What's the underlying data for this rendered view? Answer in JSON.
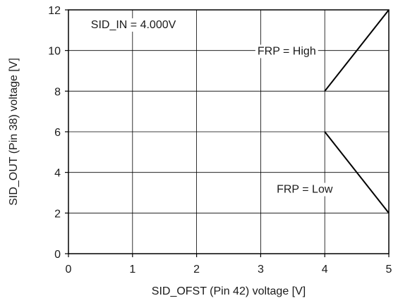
{
  "chart_data": {
    "type": "line",
    "xlabel": "SID_OFST (Pin 42) voltage [V]",
    "ylabel": "SID_OUT (Pin 38) voltage [V]",
    "xlim": [
      0,
      5
    ],
    "ylim": [
      0,
      12
    ],
    "x_ticks": [
      0,
      1,
      2,
      3,
      4,
      5
    ],
    "y_ticks": [
      0,
      2,
      4,
      6,
      8,
      10,
      12
    ],
    "grid": true,
    "series": [
      {
        "x": [
          4,
          5
        ],
        "y": [
          8,
          12
        ],
        "color": "#000000"
      },
      {
        "x": [
          4,
          5
        ],
        "y": [
          6,
          2
        ],
        "color": "#000000"
      }
    ],
    "annotations": [
      {
        "text": "SID_IN = 4.000V",
        "x": 0.35,
        "y": 11.1
      },
      {
        "text": "FRP = High",
        "x": 2.95,
        "y": 9.8
      },
      {
        "text": "FRP = Low",
        "x": 3.25,
        "y": 3.0
      }
    ]
  }
}
